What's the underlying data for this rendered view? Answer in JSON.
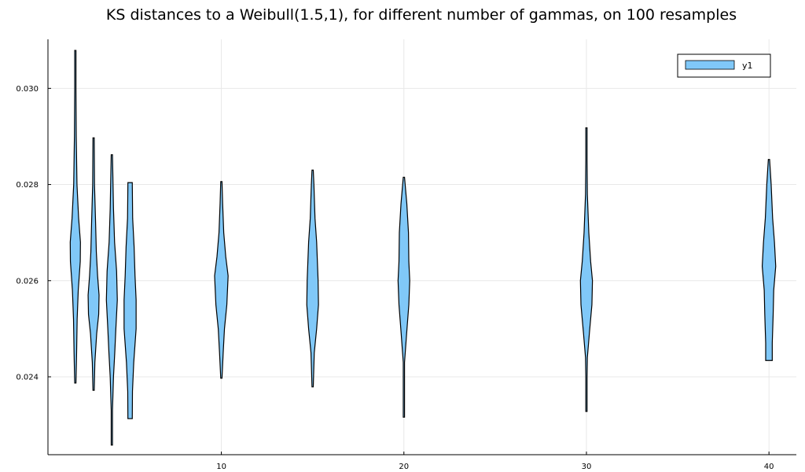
{
  "chart_data": {
    "type": "violin",
    "title": "KS distances to a Weibull(1.5,1), for different number of gammas, on 100 resamples",
    "xlabel": "",
    "ylabel": "",
    "xlim": [
      0.5,
      41.5
    ],
    "ylim": [
      0.02238,
      0.03102
    ],
    "x_ticks": [
      10,
      20,
      30,
      40
    ],
    "x_tick_labels": [
      "10",
      "20",
      "30",
      "40"
    ],
    "y_ticks": [
      0.024,
      0.026,
      0.028,
      0.03
    ],
    "y_tick_labels": [
      "0.024",
      "0.026",
      "0.028",
      "0.030"
    ],
    "grid": true,
    "legend_position": "top-right",
    "series": [
      {
        "name": "y1",
        "color": "#80C8F8",
        "groups": [
          {
            "x": 2,
            "min": 0.02387,
            "max": 0.03079,
            "profile": [
              [
                0.02387,
                0.0
              ],
              [
                0.0245,
                0.07
              ],
              [
                0.0252,
                0.1
              ],
              [
                0.0258,
                0.16
              ],
              [
                0.0264,
                0.27
              ],
              [
                0.0268,
                0.28
              ],
              [
                0.0273,
                0.18
              ],
              [
                0.028,
                0.09
              ],
              [
                0.029,
                0.05
              ],
              [
                0.03,
                0.03
              ],
              [
                0.03079,
                0.0
              ]
            ]
          },
          {
            "x": 3,
            "min": 0.02372,
            "max": 0.02897,
            "profile": [
              [
                0.02372,
                0.0
              ],
              [
                0.0243,
                0.07
              ],
              [
                0.0249,
                0.17
              ],
              [
                0.0253,
                0.28
              ],
              [
                0.0257,
                0.3
              ],
              [
                0.0261,
                0.22
              ],
              [
                0.0266,
                0.15
              ],
              [
                0.0272,
                0.11
              ],
              [
                0.028,
                0.05
              ],
              [
                0.02897,
                0.0
              ]
            ]
          },
          {
            "x": 4,
            "min": 0.02258,
            "max": 0.02862,
            "profile": [
              [
                0.02258,
                0.0
              ],
              [
                0.0233,
                0.03
              ],
              [
                0.024,
                0.09
              ],
              [
                0.0245,
                0.16
              ],
              [
                0.025,
                0.22
              ],
              [
                0.0256,
                0.3
              ],
              [
                0.0262,
                0.26
              ],
              [
                0.0268,
                0.15
              ],
              [
                0.0275,
                0.09
              ],
              [
                0.02862,
                0.0
              ]
            ]
          },
          {
            "x": 5,
            "min": 0.02313,
            "max": 0.02804,
            "profile": [
              [
                0.02313,
                0.12
              ],
              [
                0.0237,
                0.13
              ],
              [
                0.0243,
                0.2
              ],
              [
                0.025,
                0.33
              ],
              [
                0.0256,
                0.33
              ],
              [
                0.0261,
                0.27
              ],
              [
                0.0267,
                0.22
              ],
              [
                0.0273,
                0.14
              ],
              [
                0.02804,
                0.12
              ]
            ]
          },
          {
            "x": 10,
            "min": 0.02397,
            "max": 0.02806,
            "profile": [
              [
                0.02397,
                0.0
              ],
              [
                0.0245,
                0.1
              ],
              [
                0.025,
                0.17
              ],
              [
                0.0255,
                0.3
              ],
              [
                0.0261,
                0.37
              ],
              [
                0.0265,
                0.24
              ],
              [
                0.027,
                0.13
              ],
              [
                0.0276,
                0.07
              ],
              [
                0.02806,
                0.0
              ]
            ]
          },
          {
            "x": 15,
            "min": 0.02379,
            "max": 0.0283,
            "profile": [
              [
                0.02379,
                0.03
              ],
              [
                0.0245,
                0.09
              ],
              [
                0.025,
                0.22
              ],
              [
                0.0255,
                0.32
              ],
              [
                0.026,
                0.3
              ],
              [
                0.0264,
                0.26
              ],
              [
                0.0268,
                0.22
              ],
              [
                0.0273,
                0.13
              ],
              [
                0.028,
                0.07
              ],
              [
                0.0283,
                0.03
              ]
            ]
          },
          {
            "x": 20,
            "min": 0.02316,
            "max": 0.02815,
            "profile": [
              [
                0.02316,
                0.0
              ],
              [
                0.0238,
                0.01
              ],
              [
                0.0243,
                0.02
              ],
              [
                0.0249,
                0.15
              ],
              [
                0.0255,
                0.27
              ],
              [
                0.026,
                0.32
              ],
              [
                0.0264,
                0.27
              ],
              [
                0.027,
                0.25
              ],
              [
                0.0276,
                0.16
              ],
              [
                0.02815,
                0.0
              ]
            ]
          },
          {
            "x": 30,
            "min": 0.02328,
            "max": 0.02918,
            "profile": [
              [
                0.02328,
                0.0
              ],
              [
                0.024,
                0.01
              ],
              [
                0.0244,
                0.05
              ],
              [
                0.0249,
                0.16
              ],
              [
                0.0255,
                0.3
              ],
              [
                0.026,
                0.33
              ],
              [
                0.0264,
                0.23
              ],
              [
                0.027,
                0.13
              ],
              [
                0.0278,
                0.05
              ],
              [
                0.0285,
                0.01
              ],
              [
                0.02918,
                0.0
              ]
            ]
          },
          {
            "x": 40,
            "min": 0.02434,
            "max": 0.02852,
            "profile": [
              [
                0.02434,
                0.18
              ],
              [
                0.0247,
                0.18
              ],
              [
                0.0253,
                0.23
              ],
              [
                0.0258,
                0.26
              ],
              [
                0.0263,
                0.37
              ],
              [
                0.0268,
                0.3
              ],
              [
                0.0273,
                0.2
              ],
              [
                0.028,
                0.12
              ],
              [
                0.02852,
                0.02
              ]
            ]
          }
        ]
      }
    ]
  }
}
